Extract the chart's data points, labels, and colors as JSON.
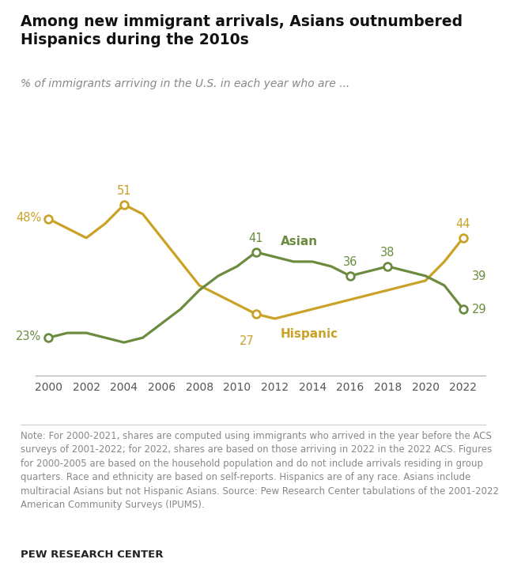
{
  "title": "Among new immigrant arrivals, Asians outnumbered\nHispanics during the 2010s",
  "subtitle": "% of immigrants arriving in the U.S. in each year who are ...",
  "years": [
    2000,
    2001,
    2002,
    2003,
    2004,
    2005,
    2006,
    2007,
    2008,
    2009,
    2010,
    2011,
    2012,
    2013,
    2014,
    2015,
    2016,
    2017,
    2018,
    2019,
    2020,
    2021,
    2022
  ],
  "hispanic": [
    48,
    46,
    44,
    47,
    51,
    49,
    44,
    39,
    34,
    32,
    30,
    28,
    27,
    28,
    29,
    30,
    31,
    32,
    33,
    34,
    35,
    39,
    44
  ],
  "asian": [
    23,
    24,
    24,
    23,
    22,
    23,
    26,
    29,
    33,
    36,
    38,
    41,
    40,
    39,
    39,
    38,
    36,
    37,
    38,
    37,
    36,
    34,
    29
  ],
  "hispanic_color": "#c9a227",
  "asian_color": "#6b8c3e",
  "highlighted_hispanic_years": [
    2000,
    2004,
    2011,
    2022
  ],
  "highlighted_asian_years": [
    2000,
    2011,
    2016,
    2018,
    2022
  ],
  "label_asian": "Asian",
  "label_hispanic": "Hispanic",
  "note": "Note: For 2000-2021, shares are computed using immigrants who arrived in the year before the ACS surveys of 2001-2022; for 2022, shares are based on those arriving in 2022 in the 2022 ACS. Figures for 2000-2005 are based on the household population and do not include arrivals residing in group quarters. Race and ethnicity are based on self-reports. Hispanics are of any race. Asians include multiracial Asians but not Hispanic Asians. Source: Pew Research Center tabulations of the 2001-2022 American Community Surveys (IPUMS).",
  "source_label": "PEW RESEARCH CENTER",
  "background_color": "#ffffff",
  "ylim": [
    15,
    60
  ],
  "xlim": [
    1999.3,
    2023.2
  ],
  "title_fontsize": 13.5,
  "subtitle_fontsize": 10,
  "annot_fontsize": 10.5,
  "label_fontsize": 11,
  "note_fontsize": 8.5,
  "tick_fontsize": 10
}
